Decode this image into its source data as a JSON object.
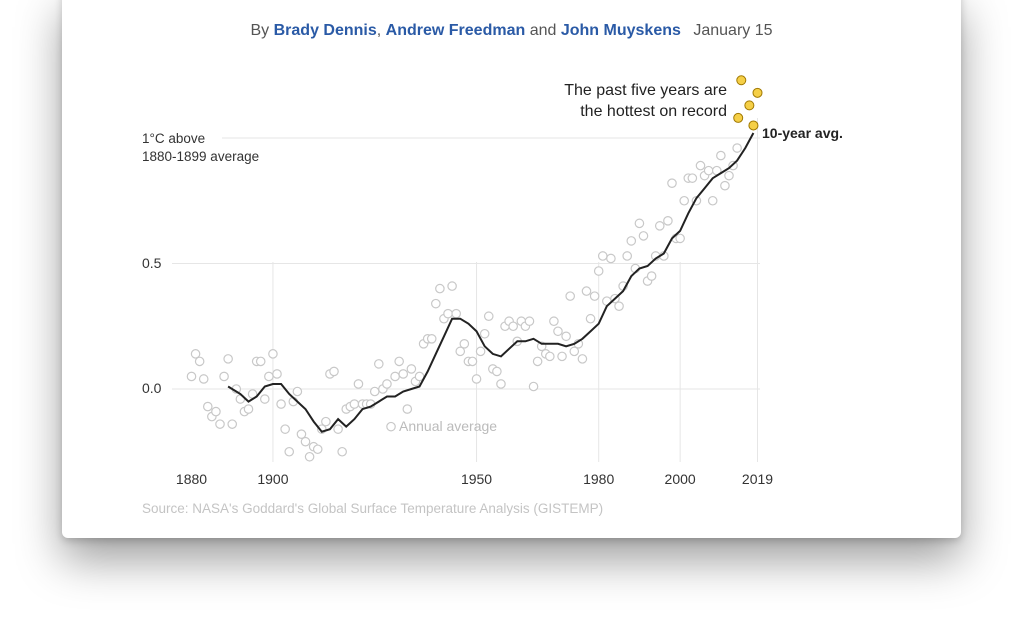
{
  "byline": {
    "prefix": "By",
    "authors": [
      "Brady Dennis",
      "Andrew Freedman",
      "John Muyskens"
    ],
    "sep1": ",",
    "sep2": "and",
    "date": "January 15"
  },
  "colors": {
    "author": "#2a5aa6",
    "annual_dot_stroke": "#c8c8c8",
    "highlight_dot_fill": "#f5cf47",
    "highlight_dot_stroke": "#a07800",
    "avg_line": "#222222",
    "gridline": "#e6e6e6"
  },
  "chart_data": {
    "type": "scatter",
    "title": "",
    "ylabel": "1°C above 1880-1899 average",
    "ylabel_lines": [
      "1°C above",
      "1880-1899 average"
    ],
    "ylim": [
      -0.3,
      1.02
    ],
    "xlim": [
      1879,
      2020
    ],
    "y_ticks": [
      0.0,
      0.5,
      1.0
    ],
    "y_tick_labels": [
      "0.0",
      "0.5"
    ],
    "x_ticks": [
      1880,
      1900,
      1950,
      1980,
      2000,
      2019
    ],
    "x_tick_labels": [
      "1880",
      "1900",
      "1950",
      "1980",
      "2000",
      "2019"
    ],
    "annual_label": "Annual average",
    "avg_label": "10-year avg.",
    "highlight_note": [
      "The past five years are",
      "the hottest on record"
    ],
    "source": "Source: NASA's Goddard's Global Surface Temperature Analysis (GISTEMP)",
    "series": [
      {
        "name": "Annual average",
        "points": [
          [
            1880,
            0.05
          ],
          [
            1881,
            0.14
          ],
          [
            1882,
            0.11
          ],
          [
            1883,
            0.04
          ],
          [
            1884,
            -0.07
          ],
          [
            1885,
            -0.11
          ],
          [
            1886,
            -0.09
          ],
          [
            1887,
            -0.14
          ],
          [
            1888,
            0.05
          ],
          [
            1889,
            0.12
          ],
          [
            1890,
            -0.14
          ],
          [
            1891,
            0.0
          ],
          [
            1892,
            -0.04
          ],
          [
            1893,
            -0.09
          ],
          [
            1894,
            -0.08
          ],
          [
            1895,
            -0.02
          ],
          [
            1896,
            0.11
          ],
          [
            1897,
            0.11
          ],
          [
            1898,
            -0.04
          ],
          [
            1899,
            0.05
          ],
          [
            1900,
            0.14
          ],
          [
            1901,
            0.06
          ],
          [
            1902,
            -0.06
          ],
          [
            1903,
            -0.16
          ],
          [
            1904,
            -0.25
          ],
          [
            1905,
            -0.05
          ],
          [
            1906,
            -0.01
          ],
          [
            1907,
            -0.18
          ],
          [
            1908,
            -0.21
          ],
          [
            1909,
            -0.27
          ],
          [
            1910,
            -0.23
          ],
          [
            1911,
            -0.24
          ],
          [
            1912,
            -0.16
          ],
          [
            1913,
            -0.13
          ],
          [
            1914,
            0.06
          ],
          [
            1915,
            0.07
          ],
          [
            1916,
            -0.16
          ],
          [
            1917,
            -0.25
          ],
          [
            1918,
            -0.08
          ],
          [
            1919,
            -0.07
          ],
          [
            1920,
            -0.06
          ],
          [
            1921,
            0.02
          ],
          [
            1922,
            -0.06
          ],
          [
            1923,
            -0.06
          ],
          [
            1924,
            -0.06
          ],
          [
            1925,
            -0.01
          ],
          [
            1926,
            0.1
          ],
          [
            1927,
            0.0
          ],
          [
            1928,
            0.02
          ],
          [
            1929,
            -0.15
          ],
          [
            1930,
            0.05
          ],
          [
            1931,
            0.11
          ],
          [
            1932,
            0.06
          ],
          [
            1933,
            -0.08
          ],
          [
            1934,
            0.08
          ],
          [
            1935,
            0.03
          ],
          [
            1936,
            0.05
          ],
          [
            1937,
            0.18
          ],
          [
            1938,
            0.2
          ],
          [
            1939,
            0.2
          ],
          [
            1940,
            0.34
          ],
          [
            1941,
            0.4
          ],
          [
            1942,
            0.28
          ],
          [
            1943,
            0.3
          ],
          [
            1944,
            0.41
          ],
          [
            1945,
            0.3
          ],
          [
            1946,
            0.15
          ],
          [
            1947,
            0.18
          ],
          [
            1948,
            0.11
          ],
          [
            1949,
            0.11
          ],
          [
            1950,
            0.04
          ],
          [
            1951,
            0.15
          ],
          [
            1952,
            0.22
          ],
          [
            1953,
            0.29
          ],
          [
            1954,
            0.08
          ],
          [
            1955,
            0.07
          ],
          [
            1956,
            0.02
          ],
          [
            1957,
            0.25
          ],
          [
            1958,
            0.27
          ],
          [
            1959,
            0.25
          ],
          [
            1960,
            0.19
          ],
          [
            1961,
            0.27
          ],
          [
            1962,
            0.25
          ],
          [
            1963,
            0.27
          ],
          [
            1964,
            0.01
          ],
          [
            1965,
            0.11
          ],
          [
            1966,
            0.17
          ],
          [
            1967,
            0.14
          ],
          [
            1968,
            0.13
          ],
          [
            1969,
            0.27
          ],
          [
            1970,
            0.23
          ],
          [
            1971,
            0.13
          ],
          [
            1972,
            0.21
          ],
          [
            1973,
            0.37
          ],
          [
            1974,
            0.15
          ],
          [
            1975,
            0.18
          ],
          [
            1976,
            0.12
          ],
          [
            1977,
            0.39
          ],
          [
            1978,
            0.28
          ],
          [
            1979,
            0.37
          ],
          [
            1980,
            0.47
          ],
          [
            1981,
            0.53
          ],
          [
            1982,
            0.35
          ],
          [
            1983,
            0.52
          ],
          [
            1984,
            0.36
          ],
          [
            1985,
            0.33
          ],
          [
            1986,
            0.41
          ],
          [
            1987,
            0.53
          ],
          [
            1988,
            0.59
          ],
          [
            1989,
            0.48
          ],
          [
            1990,
            0.66
          ],
          [
            1991,
            0.61
          ],
          [
            1992,
            0.43
          ],
          [
            1993,
            0.45
          ],
          [
            1994,
            0.53
          ],
          [
            1995,
            0.65
          ],
          [
            1996,
            0.53
          ],
          [
            1997,
            0.67
          ],
          [
            1998,
            0.82
          ],
          [
            1999,
            0.6
          ],
          [
            2000,
            0.6
          ],
          [
            2001,
            0.75
          ],
          [
            2002,
            0.84
          ],
          [
            2003,
            0.84
          ],
          [
            2004,
            0.75
          ],
          [
            2005,
            0.89
          ],
          [
            2006,
            0.85
          ],
          [
            2007,
            0.87
          ],
          [
            2008,
            0.75
          ],
          [
            2009,
            0.87
          ],
          [
            2010,
            0.93
          ],
          [
            2011,
            0.81
          ],
          [
            2012,
            0.85
          ],
          [
            2013,
            0.89
          ],
          [
            2014,
            0.96
          ]
        ]
      },
      {
        "name": "Past five years",
        "points": [
          [
            2015,
            1.08
          ],
          [
            2016,
            1.23
          ],
          [
            2017,
            1.13
          ],
          [
            2018,
            1.05
          ],
          [
            2019,
            1.18
          ]
        ]
      },
      {
        "name": "10-year avg.",
        "points": [
          [
            1889,
            0.01
          ],
          [
            1892,
            -0.02
          ],
          [
            1894,
            -0.05
          ],
          [
            1896,
            -0.03
          ],
          [
            1898,
            0.01
          ],
          [
            1900,
            0.02
          ],
          [
            1902,
            0.02
          ],
          [
            1904,
            -0.02
          ],
          [
            1906,
            -0.05
          ],
          [
            1908,
            -0.08
          ],
          [
            1910,
            -0.13
          ],
          [
            1912,
            -0.17
          ],
          [
            1914,
            -0.16
          ],
          [
            1916,
            -0.12
          ],
          [
            1918,
            -0.15
          ],
          [
            1920,
            -0.12
          ],
          [
            1922,
            -0.08
          ],
          [
            1924,
            -0.07
          ],
          [
            1926,
            -0.05
          ],
          [
            1928,
            -0.03
          ],
          [
            1930,
            -0.03
          ],
          [
            1932,
            -0.01
          ],
          [
            1934,
            0.0
          ],
          [
            1936,
            0.01
          ],
          [
            1938,
            0.07
          ],
          [
            1940,
            0.14
          ],
          [
            1942,
            0.21
          ],
          [
            1944,
            0.28
          ],
          [
            1946,
            0.28
          ],
          [
            1948,
            0.26
          ],
          [
            1950,
            0.23
          ],
          [
            1952,
            0.17
          ],
          [
            1954,
            0.14
          ],
          [
            1956,
            0.13
          ],
          [
            1958,
            0.16
          ],
          [
            1960,
            0.19
          ],
          [
            1962,
            0.19
          ],
          [
            1964,
            0.2
          ],
          [
            1966,
            0.18
          ],
          [
            1968,
            0.18
          ],
          [
            1970,
            0.18
          ],
          [
            1972,
            0.17
          ],
          [
            1974,
            0.18
          ],
          [
            1976,
            0.2
          ],
          [
            1978,
            0.23
          ],
          [
            1980,
            0.26
          ],
          [
            1982,
            0.33
          ],
          [
            1984,
            0.36
          ],
          [
            1986,
            0.39
          ],
          [
            1988,
            0.45
          ],
          [
            1990,
            0.48
          ],
          [
            1992,
            0.49
          ],
          [
            1994,
            0.52
          ],
          [
            1996,
            0.54
          ],
          [
            1998,
            0.6
          ],
          [
            2000,
            0.63
          ],
          [
            2002,
            0.7
          ],
          [
            2004,
            0.76
          ],
          [
            2006,
            0.8
          ],
          [
            2008,
            0.84
          ],
          [
            2010,
            0.86
          ],
          [
            2012,
            0.88
          ],
          [
            2014,
            0.91
          ],
          [
            2016,
            0.96
          ],
          [
            2018,
            1.02
          ]
        ]
      }
    ]
  }
}
